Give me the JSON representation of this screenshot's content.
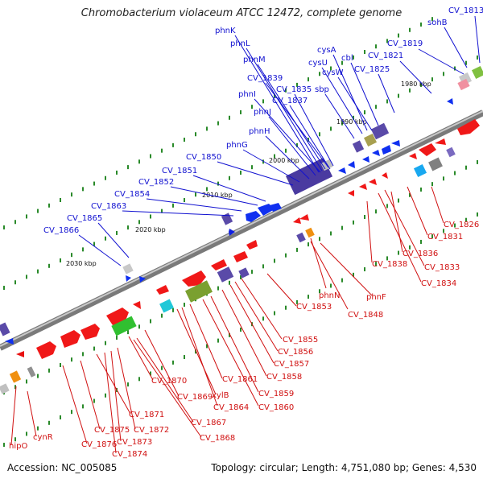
{
  "title": "Chromobacterium violaceum ATCC 12472, complete genome",
  "footer": {
    "accession": "Accession: NC_005085",
    "summary": "Topology: circular; Length: 4,751,080 bp; Genes: 4,530"
  },
  "colors": {
    "forward_label": "#1010d0",
    "reverse_label": "#d01010",
    "backbone": "#808080",
    "tick": "#2a8a2a"
  },
  "kbp_labels": [
    "1980 kbp",
    "1990 kbp",
    "2000 kbp",
    "2010 kbp",
    "2020 kbp",
    "2030 kbp"
  ],
  "forward_labels": [
    "phnK",
    "phnL",
    "phnM",
    "CV_1839",
    "phnI",
    "CV_1835",
    "CV_1837",
    "phnJ",
    "phnH",
    "phnG",
    "CV_1850",
    "CV_1851",
    "CV_1852",
    "CV_1854",
    "CV_1863",
    "CV_1865",
    "CV_1866",
    "cysA",
    "cysU",
    "cbl",
    "cysW",
    "CV_1825",
    "sbp",
    "CV_1819",
    "CV_1821",
    "sohB",
    "CV_1813"
  ],
  "reverse_labels": [
    "CV_1826",
    "CV_1831",
    "CV_1836",
    "CV_1833",
    "CV_1838",
    "CV_1834",
    "phnN",
    "phnF",
    "CV_1848",
    "CV_1853",
    "CV_1855",
    "CV_1856",
    "CV_1857",
    "CV_1858",
    "CV_1859",
    "CV_1860",
    "CV_1861",
    "CV_1864",
    "xylB",
    "CV_1869",
    "CV_1870",
    "CV_1867",
    "CV_1868",
    "CV_1871",
    "CV_1872",
    "CV_1873",
    "CV_1874",
    "CV_1875",
    "CV_1876",
    "cynR",
    "hipO"
  ]
}
